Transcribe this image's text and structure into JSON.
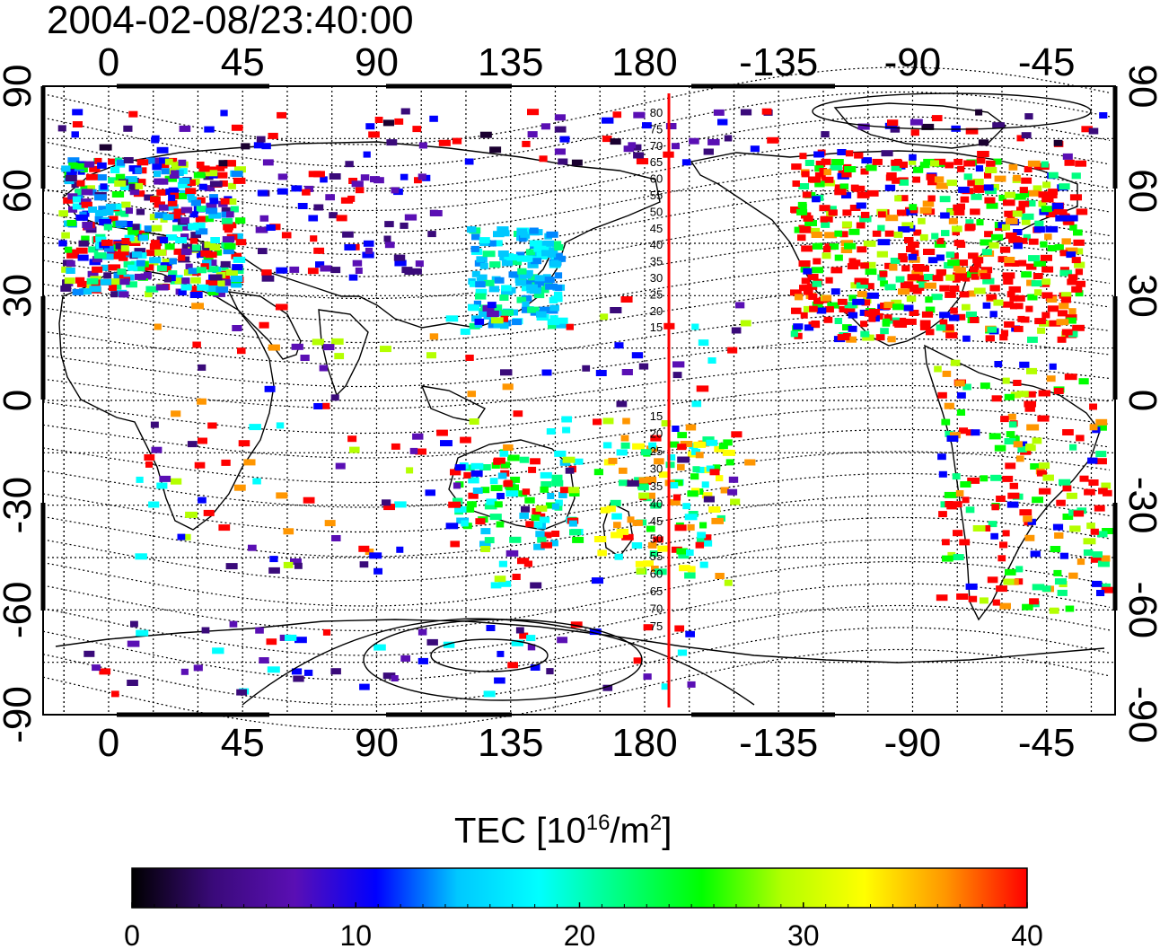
{
  "title": "2004-02-08/23:40:00",
  "colorbar": {
    "label_main": "TEC  [10",
    "label_exp": "16",
    "label_mid": "/m",
    "label_exp2": "2",
    "label_end": "]",
    "ticks": [
      "0",
      "10",
      "20",
      "30",
      "40"
    ],
    "range": [
      0,
      40
    ],
    "colors": [
      "#000000",
      "#3a0a7a",
      "#5a0fb4",
      "#0000ff",
      "#00c8ff",
      "#00ffff",
      "#00ff80",
      "#00ff00",
      "#b4ff00",
      "#ffff00",
      "#ff9600",
      "#ff0000"
    ]
  },
  "axes": {
    "top_lon_labels": [
      "0",
      "45",
      "90",
      "135",
      "180",
      "-135",
      "-90",
      "-45"
    ],
    "bottom_lon_labels": [
      "0",
      "45",
      "90",
      "135",
      "180",
      "-135",
      "-90",
      "-45"
    ],
    "left_lat_labels": [
      "90",
      "60",
      "30",
      "0",
      "-30",
      "-60",
      "-90"
    ],
    "right_lat_labels": [
      "90",
      "60",
      "30",
      "0",
      "-30",
      "-60",
      "-90"
    ]
  },
  "maglat_labels": {
    "north": [
      "80",
      "75",
      "70",
      "65",
      "60",
      "55",
      "50",
      "45",
      "40",
      "35",
      "30",
      "25",
      "20",
      "15"
    ],
    "south": [
      "15",
      "20",
      "25",
      "30",
      "35",
      "40",
      "45",
      "50",
      "55",
      "60",
      "65",
      "70",
      "75"
    ]
  },
  "terminator_lon": 185
}
